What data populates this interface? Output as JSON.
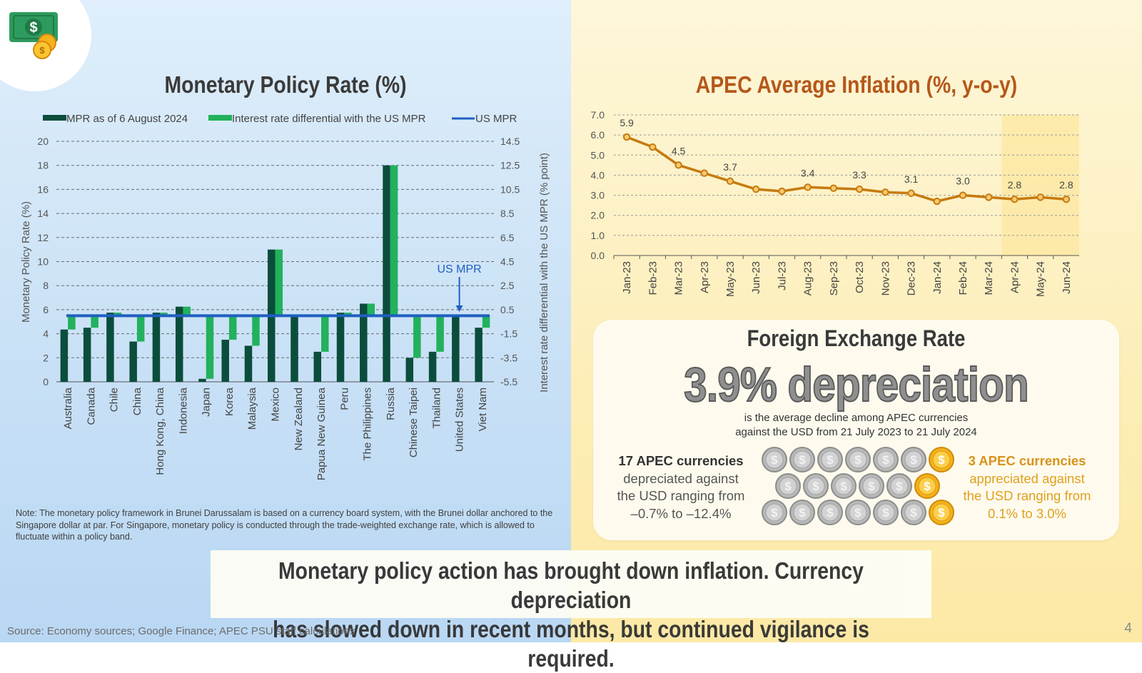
{
  "page": {
    "number": "4"
  },
  "icons": {
    "money": "money-icon",
    "silver_coin": "silver-dollar-coin-icon",
    "gold_coin": "gold-dollar-coin-icon"
  },
  "colors": {
    "mpr": "#0b4d3c",
    "differential": "#22b15c",
    "us_line": "#1f5fc1",
    "inflation": "#c67a0e"
  },
  "mpr_chart": {
    "title": "Monetary Policy Rate (%)",
    "legend": [
      "MPR as of 6 August 2024",
      "Interest rate differential with the US MPR",
      "US MPR"
    ],
    "y_left_label": "Monetary Policy Rate (%)",
    "y_right_label": "Interest rate differential with the US MPR (% point)",
    "us_mpr_annotation": "US MPR"
  },
  "inflation_chart": {
    "title": "APEC Average Inflation (%, y-o-y)"
  },
  "chart_data": [
    {
      "type": "bar",
      "title": "Monetary Policy Rate (%)",
      "categories": [
        "Australia",
        "Canada",
        "Chile",
        "China",
        "Hong Kong, China",
        "Indonesia",
        "Japan",
        "Korea",
        "Malaysia",
        "Mexico",
        "New Zealand",
        "Papua New Guinea",
        "Peru",
        "The Philippines",
        "Russia",
        "Chinese Taipei",
        "Thailand",
        "United States",
        "Viet Nam"
      ],
      "series": [
        {
          "name": "MPR as of 6 August 2024",
          "axis": "left",
          "values": [
            4.35,
            4.5,
            5.75,
            3.35,
            5.75,
            6.25,
            0.25,
            3.5,
            3.0,
            11.0,
            5.5,
            2.5,
            5.75,
            6.5,
            18.0,
            2.0,
            2.5,
            5.5,
            4.5
          ]
        },
        {
          "name": "Interest rate differential with the US MPR",
          "axis": "right",
          "values": [
            -1.15,
            -1.0,
            0.25,
            -2.15,
            0.25,
            0.75,
            -5.25,
            -2.0,
            -2.5,
            5.5,
            0.0,
            -3.0,
            0.25,
            1.0,
            12.5,
            -3.5,
            -3.0,
            0.0,
            -1.0
          ]
        },
        {
          "name": "US MPR",
          "axis": "left",
          "type": "line",
          "value": 5.5
        }
      ],
      "ylim_left": [
        0,
        20
      ],
      "ylim_right": [
        -5.5,
        14.5
      ],
      "yticks_left": [
        "0",
        "2",
        "4",
        "6",
        "8",
        "10",
        "12",
        "14",
        "16",
        "18",
        "20"
      ],
      "yticks_right": [
        "-5.5",
        "-3.5",
        "-1.5",
        "0.5",
        "2.5",
        "4.5",
        "6.5",
        "8.5",
        "10.5",
        "12.5",
        "14.5"
      ],
      "ylabel": "Monetary Policy Rate (%)",
      "ylabel_right": "Interest rate differential with the US MPR (% point)",
      "legend_position": "top",
      "grid": true
    },
    {
      "type": "line",
      "title": "APEC Average Inflation (%, y-o-y)",
      "categories": [
        "Jan-23",
        "Feb-23",
        "Mar-23",
        "Apr-23",
        "May-23",
        "Jun-23",
        "Jul-23",
        "Aug-23",
        "Sep-23",
        "Oct-23",
        "Nov-23",
        "Dec-23",
        "Jan-24",
        "Feb-24",
        "Mar-24",
        "Apr-24",
        "May-24",
        "Jun-24"
      ],
      "series": [
        {
          "name": "APEC Average Inflation",
          "values": [
            5.9,
            5.4,
            4.5,
            4.1,
            3.7,
            3.3,
            3.2,
            3.4,
            3.35,
            3.3,
            3.15,
            3.1,
            2.7,
            3.0,
            2.9,
            2.8,
            2.9,
            2.8
          ]
        }
      ],
      "data_labels": [
        {
          "index": 0,
          "text": "5.9"
        },
        {
          "index": 2,
          "text": "4.5"
        },
        {
          "index": 4,
          "text": "3.7"
        },
        {
          "index": 7,
          "text": "3.4"
        },
        {
          "index": 9,
          "text": "3.3"
        },
        {
          "index": 11,
          "text": "3.1"
        },
        {
          "index": 13,
          "text": "3.0"
        },
        {
          "index": 15,
          "text": "2.8"
        },
        {
          "index": 17,
          "text": "2.8"
        }
      ],
      "shaded_region": [
        "Apr-24",
        "Jun-24"
      ],
      "ylim": [
        0,
        7
      ],
      "yticks": [
        "0.0",
        "1.0",
        "2.0",
        "3.0",
        "4.0",
        "5.0",
        "6.0",
        "7.0"
      ],
      "grid": true
    }
  ],
  "note": "Note: The monetary policy framework in Brunei Darussalam is based on a currency board system, with the Brunei dollar anchored to the Singapore dollar at par. For Singapore, monetary policy is conducted through the trade-weighted exchange rate, which is allowed to fluctuate within a policy band.",
  "fx": {
    "title": "Foreign Exchange Rate",
    "headline": "3.9% depreciation",
    "desc_line1": "is the average decline among APEC currencies",
    "desc_line2": "against the USD from 21 July 2023 to 21 July 2024",
    "depreciated": {
      "count": "17 APEC currencies",
      "line1": "depreciated against",
      "line2": "the USD ranging from",
      "line3": "–0.7% to –12.4%",
      "coins": 17
    },
    "appreciated": {
      "count": "3 APEC currencies",
      "line1": "appreciated against",
      "line2": "the USD ranging from",
      "line3": "0.1% to 3.0%",
      "coins": 3
    },
    "coin_symbol": "$"
  },
  "conclusion": {
    "line1": "Monetary policy action has brought down inflation. Currency depreciation",
    "line2": "has slowed down in recent months, but continued vigilance is required."
  },
  "source": "Source: Economy sources; Google Finance; APEC PSU staff calculations"
}
